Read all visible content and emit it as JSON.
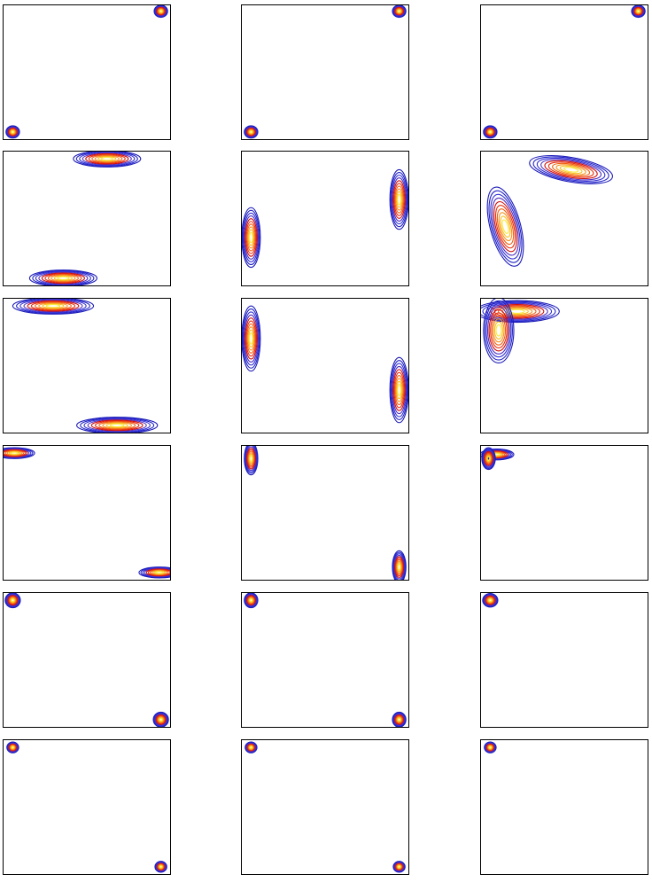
{
  "chart_data": {
    "type": "contour-grid",
    "colors": [
      "#1a1ab8",
      "#2222c8",
      "#3030d8",
      "#5030c0",
      "#d01010",
      "#e83010",
      "#f06010",
      "#f89020",
      "#f8c020",
      "#f8e840"
    ],
    "xlim": [
      0,
      1
    ],
    "ylim": [
      0,
      1
    ],
    "panels": [
      {
        "type": "contour",
        "peaks": [
          {
            "x": 0.06,
            "y": 0.06,
            "sx": 0.04,
            "sy": 0.045
          },
          {
            "x": 0.94,
            "y": 0.95,
            "sx": 0.04,
            "sy": 0.045
          }
        ]
      },
      {
        "type": "contour",
        "peaks": [
          {
            "x": 0.06,
            "y": 0.06,
            "sx": 0.04,
            "sy": 0.045
          },
          {
            "x": 0.94,
            "y": 0.95,
            "sx": 0.04,
            "sy": 0.045
          }
        ]
      },
      {
        "type": "contour",
        "peaks": [
          {
            "x": 0.06,
            "y": 0.06,
            "sx": 0.04,
            "sy": 0.045
          },
          {
            "x": 0.94,
            "y": 0.95,
            "sx": 0.04,
            "sy": 0.045
          }
        ]
      },
      {
        "type": "contour",
        "peaks": [
          {
            "x": 0.62,
            "y": 0.94,
            "sx": 0.2,
            "sy": 0.06
          },
          {
            "x": 0.36,
            "y": 0.06,
            "sx": 0.2,
            "sy": 0.06
          }
        ]
      },
      {
        "type": "contour",
        "peaks": [
          {
            "x": 0.06,
            "y": 0.36,
            "sx": 0.055,
            "sy": 0.22
          },
          {
            "x": 0.94,
            "y": 0.64,
            "sx": 0.055,
            "sy": 0.22
          }
        ]
      },
      {
        "type": "contour",
        "peaks": [
          {
            "x": 0.54,
            "y": 0.86,
            "sx": 0.25,
            "sy": 0.09,
            "angle": -10
          },
          {
            "x": 0.15,
            "y": 0.44,
            "sx": 0.09,
            "sy": 0.3,
            "angle": 15
          }
        ]
      },
      {
        "type": "contour",
        "peaks": [
          {
            "x": 0.3,
            "y": 0.94,
            "sx": 0.24,
            "sy": 0.06
          },
          {
            "x": 0.68,
            "y": 0.06,
            "sx": 0.24,
            "sy": 0.06
          }
        ]
      },
      {
        "type": "contour",
        "peaks": [
          {
            "x": 0.06,
            "y": 0.7,
            "sx": 0.055,
            "sy": 0.24
          },
          {
            "x": 0.94,
            "y": 0.32,
            "sx": 0.055,
            "sy": 0.24
          }
        ]
      },
      {
        "type": "contour",
        "peaks": [
          {
            "x": 0.22,
            "y": 0.9,
            "sx": 0.25,
            "sy": 0.08
          },
          {
            "x": 0.11,
            "y": 0.76,
            "sx": 0.09,
            "sy": 0.24
          }
        ]
      },
      {
        "type": "contour",
        "peaks": [
          {
            "x": 0.07,
            "y": 0.94,
            "sx": 0.12,
            "sy": 0.04
          },
          {
            "x": 0.93,
            "y": 0.06,
            "sx": 0.12,
            "sy": 0.04
          }
        ]
      },
      {
        "type": "contour",
        "peaks": [
          {
            "x": 0.06,
            "y": 0.9,
            "sx": 0.04,
            "sy": 0.12
          },
          {
            "x": 0.94,
            "y": 0.1,
            "sx": 0.04,
            "sy": 0.12
          }
        ]
      },
      {
        "type": "contour",
        "peaks": [
          {
            "x": 0.1,
            "y": 0.93,
            "sx": 0.1,
            "sy": 0.04
          },
          {
            "x": 0.05,
            "y": 0.9,
            "sx": 0.04,
            "sy": 0.08
          }
        ]
      },
      {
        "type": "contour",
        "peaks": [
          {
            "x": 0.06,
            "y": 0.94,
            "sx": 0.045,
            "sy": 0.055
          },
          {
            "x": 0.94,
            "y": 0.06,
            "sx": 0.045,
            "sy": 0.055
          }
        ]
      },
      {
        "type": "contour",
        "peaks": [
          {
            "x": 0.06,
            "y": 0.94,
            "sx": 0.04,
            "sy": 0.055
          },
          {
            "x": 0.94,
            "y": 0.06,
            "sx": 0.04,
            "sy": 0.055
          }
        ]
      },
      {
        "type": "contour",
        "peaks": [
          {
            "x": 0.06,
            "y": 0.94,
            "sx": 0.045,
            "sy": 0.05
          }
        ]
      },
      {
        "type": "contour",
        "peaks": [
          {
            "x": 0.06,
            "y": 0.94,
            "sx": 0.035,
            "sy": 0.04
          },
          {
            "x": 0.94,
            "y": 0.06,
            "sx": 0.035,
            "sy": 0.04
          }
        ]
      },
      {
        "type": "contour",
        "peaks": [
          {
            "x": 0.06,
            "y": 0.94,
            "sx": 0.035,
            "sy": 0.04
          },
          {
            "x": 0.94,
            "y": 0.06,
            "sx": 0.035,
            "sy": 0.04
          }
        ]
      },
      {
        "type": "contour",
        "peaks": [
          {
            "x": 0.06,
            "y": 0.94,
            "sx": 0.035,
            "sy": 0.04
          }
        ]
      }
    ]
  }
}
